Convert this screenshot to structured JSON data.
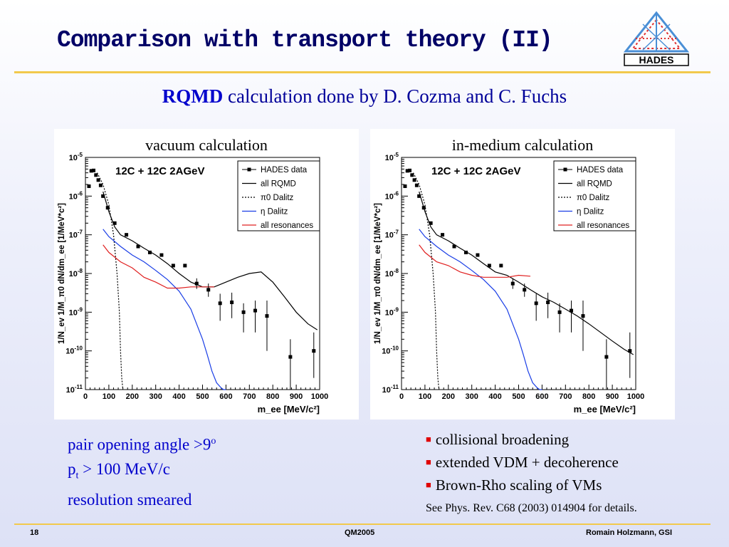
{
  "slide": {
    "title": "Comparison with transport theory (II)",
    "subtitle_bold": "RQMD",
    "subtitle_rest": " calculation done by D. Cozma and C. Fuchs",
    "logo_text": "HADES",
    "left_notes": {
      "line1": "pair opening angle >9",
      "line1_sup": "o",
      "line2_p": "p",
      "line2_sub": "t",
      "line2_rest": " > 100 MeV/c",
      "line3": "resolution smeared"
    },
    "right_bullets": [
      "collisional broadening",
      "extended VDM + decoherence",
      "Brown-Rho scaling of VMs"
    ],
    "reference": "See Phys. Rev. C68 (2003) 014904 for details.",
    "footer": {
      "page": "18",
      "conference": "QM2005",
      "author": "Romain Holzmann, GSI"
    },
    "colors": {
      "title": "#000066",
      "subtitle": "#000099",
      "notes": "#0000cc",
      "rule": "#f2c94c",
      "bullet": "#e00000"
    }
  },
  "chart_data": [
    {
      "type": "line",
      "panel_title": "vacuum calculation",
      "reaction": "12C + 12C   2AGeV",
      "xlabel": "m_ee  [MeV/c²]",
      "ylabel": "1/N_ev 1/M_π0 dN/dm_ee [1/MeV*c²]",
      "xlim": [
        0,
        1000
      ],
      "ylim": [
        1e-11,
        1e-05
      ],
      "yscale": "log",
      "x_ticks": [
        0,
        100,
        200,
        300,
        400,
        500,
        600,
        700,
        800,
        900,
        1000
      ],
      "legend_placement": "top-right",
      "legend": [
        {
          "label": "HADES data",
          "style": "marker"
        },
        {
          "label": "all    RQMD",
          "style": "black"
        },
        {
          "label": "π0 Dalitz",
          "style": "dotted"
        },
        {
          "label": "η Dalitz",
          "style": "blue"
        },
        {
          "label": "all resonances",
          "style": "red"
        }
      ],
      "data_points": [
        {
          "x": 15,
          "y": 1.8e-06
        },
        {
          "x": 25,
          "y": 4.5e-06
        },
        {
          "x": 35,
          "y": 4.6e-06
        },
        {
          "x": 45,
          "y": 3.5e-06
        },
        {
          "x": 55,
          "y": 2.6e-06
        },
        {
          "x": 65,
          "y": 1.9e-06
        },
        {
          "x": 75,
          "y": 1e-06
        },
        {
          "x": 95,
          "y": 5e-07
        },
        {
          "x": 125,
          "y": 2e-07
        },
        {
          "x": 175,
          "y": 1e-07
        },
        {
          "x": 225,
          "y": 5e-08
        },
        {
          "x": 275,
          "y": 3.5e-08
        },
        {
          "x": 325,
          "y": 3e-08
        },
        {
          "x": 375,
          "y": 1.6e-08
        },
        {
          "x": 425,
          "y": 1.6e-08
        },
        {
          "x": 475,
          "y": 5.5e-09,
          "err": [
            4e-09,
            7.5e-09
          ]
        },
        {
          "x": 525,
          "y": 3.8e-09,
          "err": [
            2.5e-09,
            5.5e-09
          ]
        },
        {
          "x": 575,
          "y": 1.7e-09,
          "err": [
            6e-10,
            3e-09
          ]
        },
        {
          "x": 625,
          "y": 1.8e-09,
          "err": [
            7e-10,
            3.2e-09
          ]
        },
        {
          "x": 675,
          "y": 1e-09,
          "err": [
            3e-10,
            1.7e-09
          ]
        },
        {
          "x": 725,
          "y": 1.1e-09,
          "err": [
            3e-10,
            2e-09
          ]
        },
        {
          "x": 775,
          "y": 8e-10,
          "err": [
            1e-10,
            2e-09
          ]
        },
        {
          "x": 875,
          "y": 7e-11,
          "err": [
            1e-11,
            2e-10
          ]
        },
        {
          "x": 975,
          "y": 1e-10,
          "err": [
            2e-11,
            3e-10
          ]
        }
      ],
      "series": [
        {
          "style": "black",
          "x": [
            75,
            100,
            125,
            150,
            200,
            250,
            300,
            350,
            400,
            450,
            500,
            550,
            600,
            650,
            700,
            750,
            800,
            850,
            900,
            950,
            990
          ],
          "y": [
            1.3e-06,
            4e-07,
            1.6e-07,
            1e-07,
            7e-08,
            4.5e-08,
            3e-08,
            1.8e-08,
            1e-08,
            6e-09,
            4.5e-09,
            4.5e-09,
            6e-09,
            8e-09,
            1e-08,
            1.1e-08,
            6e-09,
            2.5e-09,
            1e-09,
            5e-10,
            3.5e-10
          ]
        },
        {
          "style": "dotted",
          "x": [
            50,
            75,
            100,
            120,
            135,
            145,
            150,
            155,
            160
          ],
          "y": [
            4e-06,
            2e-06,
            6e-07,
            1e-07,
            1e-08,
            1e-09,
            1e-10,
            2e-11,
            1e-11
          ]
        },
        {
          "style": "blue",
          "x": [
            75,
            100,
            150,
            200,
            250,
            300,
            350,
            400,
            450,
            500,
            520,
            540,
            560,
            580,
            590,
            600
          ],
          "y": [
            1.4e-07,
            9e-08,
            5e-08,
            3e-08,
            2e-08,
            1.2e-08,
            7e-09,
            3.5e-09,
            1.2e-09,
            2e-10,
            8e-11,
            3e-11,
            1.5e-11,
            1.1e-11,
            1e-11,
            1e-11
          ]
        },
        {
          "style": "red",
          "x": [
            75,
            100,
            150,
            200,
            250,
            300,
            350,
            400,
            450,
            500,
            550
          ],
          "y": [
            5.5e-08,
            3.5e-08,
            2e-08,
            1.4e-08,
            8e-09,
            6e-09,
            4.2e-09,
            4.2e-09,
            4.5e-09,
            4.5e-09,
            4.5e-09
          ]
        }
      ]
    },
    {
      "type": "line",
      "panel_title": "in-medium calculation",
      "reaction": "12C + 12C   2AGeV",
      "xlabel": "m_ee  [MeV/c²]",
      "ylabel": "1/N_ev 1/M_π0 dN/dm_ee [1/MeV*c²]",
      "xlim": [
        0,
        1000
      ],
      "ylim": [
        1e-11,
        1e-05
      ],
      "yscale": "log",
      "x_ticks": [
        0,
        100,
        200,
        300,
        400,
        500,
        600,
        700,
        800,
        900,
        1000
      ],
      "legend_placement": "top-right",
      "legend": [
        {
          "label": "HADES data",
          "style": "marker"
        },
        {
          "label": "all    RQMD",
          "style": "black"
        },
        {
          "label": "π0 Dalitz",
          "style": "dotted"
        },
        {
          "label": "η Dalitz",
          "style": "blue"
        },
        {
          "label": "all resonances",
          "style": "red"
        }
      ],
      "data_points": [
        {
          "x": 15,
          "y": 1.8e-06
        },
        {
          "x": 25,
          "y": 4.5e-06
        },
        {
          "x": 35,
          "y": 4.6e-06
        },
        {
          "x": 45,
          "y": 3.5e-06
        },
        {
          "x": 55,
          "y": 2.6e-06
        },
        {
          "x": 65,
          "y": 1.9e-06
        },
        {
          "x": 75,
          "y": 1e-06
        },
        {
          "x": 95,
          "y": 5e-07
        },
        {
          "x": 125,
          "y": 2e-07
        },
        {
          "x": 175,
          "y": 1e-07
        },
        {
          "x": 225,
          "y": 5e-08
        },
        {
          "x": 275,
          "y": 3.5e-08
        },
        {
          "x": 325,
          "y": 3e-08
        },
        {
          "x": 375,
          "y": 1.6e-08
        },
        {
          "x": 425,
          "y": 1.6e-08
        },
        {
          "x": 475,
          "y": 5.5e-09,
          "err": [
            4e-09,
            7.5e-09
          ]
        },
        {
          "x": 525,
          "y": 3.8e-09,
          "err": [
            2.5e-09,
            5.5e-09
          ]
        },
        {
          "x": 575,
          "y": 1.7e-09,
          "err": [
            6e-10,
            3e-09
          ]
        },
        {
          "x": 625,
          "y": 1.8e-09,
          "err": [
            7e-10,
            3.2e-09
          ]
        },
        {
          "x": 675,
          "y": 1e-09,
          "err": [
            3e-10,
            1.7e-09
          ]
        },
        {
          "x": 725,
          "y": 1.1e-09,
          "err": [
            3e-10,
            2e-09
          ]
        },
        {
          "x": 775,
          "y": 8e-10,
          "err": [
            1e-10,
            2e-09
          ]
        },
        {
          "x": 875,
          "y": 7e-11,
          "err": [
            1e-11,
            2e-10
          ]
        },
        {
          "x": 975,
          "y": 1e-10,
          "err": [
            2e-11,
            3e-10
          ]
        }
      ],
      "series": [
        {
          "style": "black",
          "x": [
            75,
            100,
            125,
            150,
            200,
            250,
            300,
            350,
            400,
            450,
            500,
            550,
            600,
            650,
            700,
            750,
            800,
            850,
            900,
            950,
            990
          ],
          "y": [
            1.3e-06,
            4e-07,
            1.6e-07,
            1e-07,
            7e-08,
            4.5e-08,
            3e-08,
            1.8e-08,
            1.1e-08,
            9e-09,
            6e-09,
            3.8e-09,
            2.5e-09,
            1.8e-09,
            1.2e-09,
            8e-10,
            5e-10,
            3e-10,
            1.8e-10,
            1.1e-10,
            8e-11
          ]
        },
        {
          "style": "dotted",
          "x": [
            50,
            75,
            100,
            120,
            135,
            145,
            150,
            155,
            160
          ],
          "y": [
            4e-06,
            2e-06,
            6e-07,
            1e-07,
            1e-08,
            1e-09,
            1e-10,
            2e-11,
            1e-11
          ]
        },
        {
          "style": "blue",
          "x": [
            75,
            100,
            150,
            200,
            250,
            300,
            350,
            400,
            450,
            500,
            520,
            540,
            560,
            580,
            590,
            600
          ],
          "y": [
            1.4e-07,
            9e-08,
            5e-08,
            3e-08,
            2e-08,
            1.2e-08,
            7e-09,
            3.5e-09,
            1.2e-09,
            2e-10,
            8e-11,
            3e-11,
            1.5e-11,
            1.1e-11,
            1e-11,
            1e-11
          ]
        },
        {
          "style": "red",
          "x": [
            75,
            100,
            150,
            200,
            250,
            300,
            350,
            400,
            450,
            500,
            550
          ],
          "y": [
            5.5e-08,
            3.5e-08,
            2e-08,
            1.6e-08,
            1.1e-08,
            9e-09,
            8e-09,
            8e-09,
            8e-09,
            9e-09,
            8.5e-09
          ]
        }
      ]
    }
  ]
}
